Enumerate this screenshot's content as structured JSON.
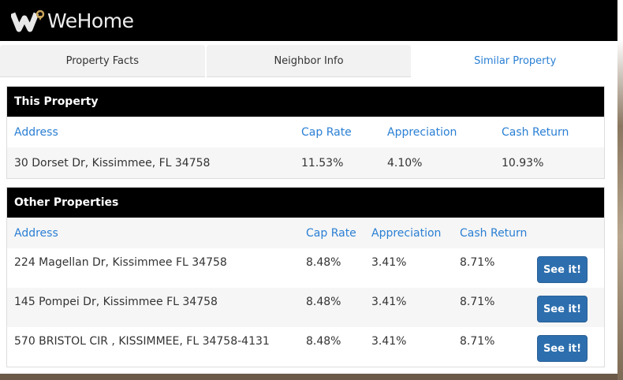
{
  "brand": {
    "name": "WeHome",
    "accent": "#c9a45b"
  },
  "tabs": [
    {
      "label": "Property Facts"
    },
    {
      "label": "Neighbor Info"
    },
    {
      "label": "Similar Property",
      "active": true
    }
  ],
  "this_property": {
    "title": "This Property",
    "headers": [
      "Address",
      "Cap Rate",
      "Appreciation",
      "Cash Return"
    ],
    "row": [
      "30 Dorset Dr, Kissimmee, FL 34758",
      "11.53%",
      "4.10%",
      "10.93%"
    ]
  },
  "other_properties": {
    "title": "Other Properties",
    "headers": [
      "Address",
      "Cap Rate",
      "Appreciation",
      "Cash Return"
    ],
    "button_label": "See it!",
    "rows": [
      [
        "224 Magellan Dr, Kissimmee FL 34758",
        "8.48%",
        "3.41%",
        "8.71%"
      ],
      [
        "145 Pompei Dr, Kissimmee FL 34758",
        "8.48%",
        "3.41%",
        "8.71%"
      ],
      [
        "570 BRISTOL CIR , KISSIMMEE, FL 34758-4131",
        "8.48%",
        "3.41%",
        "8.71%"
      ]
    ]
  }
}
